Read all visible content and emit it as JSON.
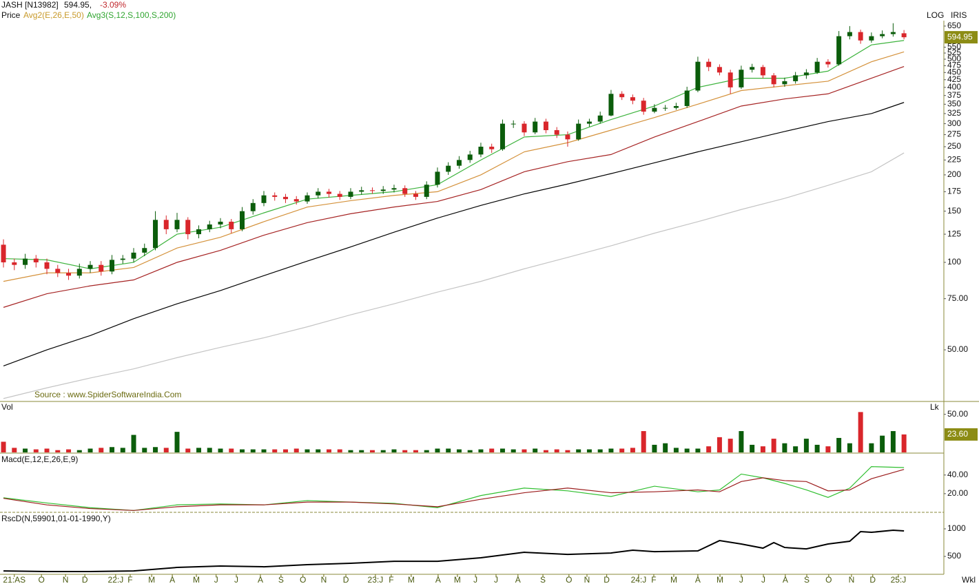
{
  "header": {
    "symbol": "JASH [N13982]",
    "last": "594.95,",
    "change": "-3.09%",
    "price_label": "Price",
    "avg2": "Avg2(E,26,E,50)",
    "avg3": "Avg3(S,12,S,100,S,200)",
    "log": "LOG",
    "iris": "IRIS",
    "source": "Source : www.SpiderSoftwareIndia.Com",
    "period": "Wkl"
  },
  "chart_data": [
    {
      "type": "candlestick",
      "yscale": "log",
      "ylim": [
        33.4,
        686
      ],
      "xlim": [
        -0.16,
        41.75
      ],
      "yticks": [
        {
          "value": 50,
          "label": "50.00"
        },
        {
          "value": 75,
          "label": "75.00"
        },
        100,
        125,
        150,
        175,
        200,
        225,
        250,
        275,
        300,
        325,
        350,
        375,
        400,
        425,
        450,
        475,
        500,
        525,
        550,
        650
      ],
      "xticks": [
        {
          "value": 0.5,
          "label": "21:AS"
        },
        {
          "value": 1.75,
          "label": "O"
        },
        {
          "value": 2.86,
          "label": "N"
        },
        {
          "value": 3.75,
          "label": "D"
        },
        {
          "value": 5.17,
          "label": "22:J"
        },
        {
          "value": 5.84,
          "label": "F"
        },
        {
          "value": 6.83,
          "label": "M"
        },
        {
          "value": 7.78,
          "label": "A"
        },
        {
          "value": 8.89,
          "label": "M"
        },
        {
          "value": 9.8,
          "label": "J"
        },
        {
          "value": 10.73,
          "label": "J"
        },
        {
          "value": 11.84,
          "label": "A"
        },
        {
          "value": 12.79,
          "label": "S"
        },
        {
          "value": 13.8,
          "label": "O"
        },
        {
          "value": 14.76,
          "label": "N"
        },
        {
          "value": 15.78,
          "label": "D"
        },
        {
          "value": 17.14,
          "label": "23:J"
        },
        {
          "value": 17.87,
          "label": "F"
        },
        {
          "value": 18.79,
          "label": "M"
        },
        {
          "value": 20.03,
          "label": "A"
        },
        {
          "value": 20.92,
          "label": "M"
        },
        {
          "value": 21.75,
          "label": "J"
        },
        {
          "value": 22.7,
          "label": "J"
        },
        {
          "value": 23.71,
          "label": "A"
        },
        {
          "value": 24.86,
          "label": "S"
        },
        {
          "value": 26.06,
          "label": "O"
        },
        {
          "value": 26.89,
          "label": "N"
        },
        {
          "value": 27.8,
          "label": "D"
        },
        {
          "value": 29.27,
          "label": "24:J"
        },
        {
          "value": 29.97,
          "label": "F"
        },
        {
          "value": 30.89,
          "label": "M"
        },
        {
          "value": 32,
          "label": "A"
        },
        {
          "value": 33.02,
          "label": "M"
        },
        {
          "value": 34,
          "label": "J"
        },
        {
          "value": 35.02,
          "label": "J"
        },
        {
          "value": 36.03,
          "label": "A"
        },
        {
          "value": 37.02,
          "label": "S"
        },
        {
          "value": 38.03,
          "label": "O"
        },
        {
          "value": 39.08,
          "label": "N"
        },
        {
          "value": 40.06,
          "label": "D"
        },
        {
          "value": 41.24,
          "label": "25:J"
        }
      ],
      "x": [
        0,
        0.5,
        1,
        1.5,
        2,
        2.5,
        3,
        3.5,
        4,
        4.5,
        5,
        5.5,
        6,
        6.5,
        7,
        7.5,
        8,
        8.5,
        9,
        9.5,
        10,
        10.5,
        11,
        11.5,
        12,
        12.5,
        13,
        13.5,
        14,
        14.5,
        15,
        15.5,
        16,
        16.5,
        17,
        17.5,
        18,
        18.5,
        19,
        19.5,
        20,
        20.5,
        21,
        21.5,
        22,
        22.5,
        23,
        23.5,
        24,
        24.5,
        25,
        25.5,
        26,
        26.5,
        27,
        27.5,
        28,
        28.5,
        29,
        29.5,
        30,
        30.5,
        31,
        31.5,
        32,
        32.5,
        33,
        33.5,
        34,
        34.5,
        35,
        35.5,
        36,
        36.5,
        37,
        37.5,
        38,
        38.5,
        39,
        39.5,
        40,
        40.5,
        41,
        41.5
      ],
      "open": [
        115,
        100,
        98,
        103,
        100,
        95,
        92,
        90,
        95,
        98,
        93,
        102,
        103,
        108,
        112,
        140,
        130,
        140,
        125,
        130,
        135,
        138,
        130,
        150,
        160,
        170,
        168,
        165,
        162,
        170,
        175,
        172,
        168,
        175,
        177,
        176,
        178,
        180,
        172,
        168,
        185,
        205,
        215,
        225,
        235,
        250,
        245,
        300,
        300,
        280,
        305,
        285,
        275,
        265,
        300,
        305,
        320,
        380,
        370,
        360,
        330,
        340,
        340,
        345,
        390,
        490,
        470,
        450,
        400,
        460,
        470,
        440,
        410,
        420,
        440,
        450,
        490,
        480,
        600,
        620,
        580,
        600,
        610,
        614
      ],
      "high": [
        120,
        103,
        107,
        106,
        103,
        98,
        95,
        99,
        101,
        101,
        106,
        106,
        112,
        116,
        150,
        145,
        148,
        143,
        134,
        139,
        142,
        141,
        155,
        165,
        176,
        174,
        172,
        169,
        174,
        180,
        179,
        176,
        180,
        182,
        181,
        183,
        185,
        184,
        176,
        190,
        212,
        221,
        232,
        242,
        258,
        256,
        310,
        308,
        306,
        314,
        312,
        292,
        282,
        310,
        312,
        330,
        392,
        388,
        378,
        368,
        350,
        348,
        354,
        402,
        510,
        502,
        480,
        460,
        475,
        482,
        478,
        448,
        432,
        452,
        462,
        505,
        500,
        625,
        650,
        632,
        618,
        628,
        665,
        630
      ],
      "low": [
        96,
        94,
        95,
        96,
        91,
        89,
        87,
        88,
        92,
        90,
        91,
        99,
        100,
        105,
        110,
        125,
        127,
        120,
        121,
        127,
        131,
        126,
        128,
        146,
        156,
        163,
        160,
        158,
        159,
        166,
        167,
        164,
        165,
        171,
        172,
        172,
        174,
        168,
        164,
        165,
        181,
        200,
        210,
        220,
        230,
        238,
        242,
        290,
        272,
        276,
        278,
        268,
        250,
        262,
        293,
        300,
        318,
        362,
        350,
        322,
        326,
        332,
        335,
        340,
        385,
        455,
        440,
        380,
        395,
        450,
        430,
        400,
        402,
        412,
        428,
        445,
        468,
        475,
        585,
        565,
        570,
        590,
        598,
        585
      ],
      "close": [
        100,
        98,
        103,
        100,
        95,
        92,
        90,
        95,
        98,
        93,
        102,
        103,
        108,
        112,
        140,
        130,
        140,
        125,
        130,
        135,
        138,
        130,
        150,
        160,
        170,
        168,
        165,
        162,
        170,
        175,
        172,
        168,
        175,
        177,
        176,
        178,
        180,
        172,
        168,
        185,
        205,
        215,
        225,
        235,
        250,
        245,
        300,
        300,
        280,
        305,
        285,
        275,
        265,
        300,
        305,
        320,
        380,
        370,
        360,
        330,
        340,
        340,
        345,
        390,
        490,
        470,
        450,
        400,
        460,
        470,
        440,
        410,
        420,
        440,
        450,
        490,
        480,
        600,
        620,
        580,
        600,
        610,
        620,
        594.95
      ],
      "up_color": "#0b5d0b",
      "down_color": "#d9262b",
      "ma": {
        "x": [
          0,
          2,
          4,
          6,
          8,
          10,
          12,
          14,
          16,
          18,
          20,
          22,
          24,
          26,
          28,
          30,
          32,
          34,
          36,
          38,
          40,
          41.5
        ],
        "series": [
          {
            "color": "#3cb33c",
            "values": [
              103,
              102,
              95,
              100,
              125,
              132,
              148,
              165,
              170,
              175,
              185,
              225,
              270,
              275,
              310,
              345,
              400,
              430,
              430,
              455,
              560,
              580
            ]
          },
          {
            "color": "#d4913a",
            "values": [
              86,
              92,
              92,
              96,
              112,
              122,
              138,
              155,
              163,
              170,
              175,
              200,
              240,
              258,
              285,
              315,
              350,
              390,
              405,
              420,
              490,
              530
            ]
          },
          {
            "color": "#a52222",
            "values": [
              70,
              78,
              83,
              87,
              100,
              110,
              124,
              137,
              147,
              155,
              162,
              178,
              205,
              222,
              235,
              270,
              305,
              345,
              365,
              380,
              430,
              472
            ]
          },
          {
            "color": "#000000",
            "values": [
              44,
              50,
              56,
              64,
              72,
              80,
              90,
              101,
              113,
              127,
              142,
              157,
              172,
              186,
              202,
              220,
              240,
              260,
              282,
              305,
              325,
              355
            ]
          },
          {
            "color": "#c4c4c4",
            "values": [
              34,
              37,
              40,
              43,
              47,
              51,
              55,
              60,
              66,
              72,
              79,
              86,
              95,
              104,
              114,
              126,
              138,
              152,
              166,
              184,
              205,
              238
            ]
          }
        ]
      }
    },
    {
      "type": "bar",
      "title": "Vol",
      "unit": "Lk",
      "ylim": [
        0,
        66
      ],
      "yticks": [
        {
          "value": 50,
          "label": "50.00"
        }
      ],
      "values": [
        14,
        6,
        5,
        4,
        5,
        3,
        4,
        3,
        5,
        6,
        7,
        6,
        23,
        6,
        7,
        6,
        27,
        5,
        6,
        6,
        5,
        5,
        4,
        4,
        4,
        4,
        4,
        5,
        4,
        4,
        4,
        4,
        3,
        3,
        3,
        3,
        4,
        3,
        3,
        3,
        5,
        5,
        4,
        3,
        4,
        5,
        5,
        4,
        4,
        5,
        3,
        4,
        3,
        4,
        4,
        4,
        5,
        5,
        6,
        28,
        10,
        12,
        6,
        5,
        5,
        8,
        20,
        18,
        28,
        10,
        8,
        18,
        12,
        8,
        18,
        10,
        8,
        19,
        12,
        53,
        12,
        22,
        28,
        23.6
      ],
      "value_labels": {
        "83": "23.60"
      }
    },
    {
      "type": "line",
      "title": "Macd(E,12,E,26,E,9)",
      "ylim": [
        0,
        62
      ],
      "yticks": [
        {
          "value": 40,
          "label": "40.00"
        },
        {
          "value": 20,
          "label": "20.00"
        }
      ],
      "x": [
        0,
        2,
        4,
        6,
        8,
        10,
        12,
        14,
        16,
        18,
        20,
        22,
        24,
        26,
        28,
        30,
        32,
        33,
        34,
        35,
        36,
        37,
        38,
        39,
        40,
        41.5
      ],
      "series": [
        {
          "color": "#2fbf2f",
          "values": [
            15.6,
            10,
            5,
            2,
            8,
            9,
            8,
            12.6,
            11,
            9.6,
            5,
            18,
            26,
            23,
            17,
            28,
            22,
            24,
            41,
            37,
            31,
            24,
            16,
            26,
            49,
            48
          ]
        },
        {
          "color": "#9b1c1c",
          "values": [
            15,
            8,
            4,
            2,
            6,
            8,
            8,
            11,
            11,
            9,
            6,
            14,
            21,
            26,
            21,
            22,
            24,
            22,
            33,
            37,
            34,
            33,
            23,
            24,
            36,
            46
          ]
        }
      ]
    },
    {
      "type": "line",
      "title": "RscD(N,59901,01-01-1990,Y)",
      "ylim": [
        188,
        1275
      ],
      "yticks": [
        1000,
        500
      ],
      "x": [
        0,
        2,
        4,
        6,
        8,
        10,
        12,
        14,
        16,
        18,
        20,
        22,
        24,
        26,
        28,
        29,
        30,
        32,
        33,
        34,
        35,
        35.5,
        36,
        37,
        38,
        39,
        39.5,
        40,
        41,
        41.5
      ],
      "series": [
        {
          "color": "#000000",
          "values": [
            237,
            225,
            225,
            237,
            300,
            325,
            312,
            350,
            375,
            412,
            412,
            475,
            575,
            537,
            562,
            612,
            587,
            600,
            787,
            725,
            650,
            750,
            662,
            637,
            725,
            775,
            950,
            937,
            975,
            962
          ]
        }
      ]
    }
  ]
}
